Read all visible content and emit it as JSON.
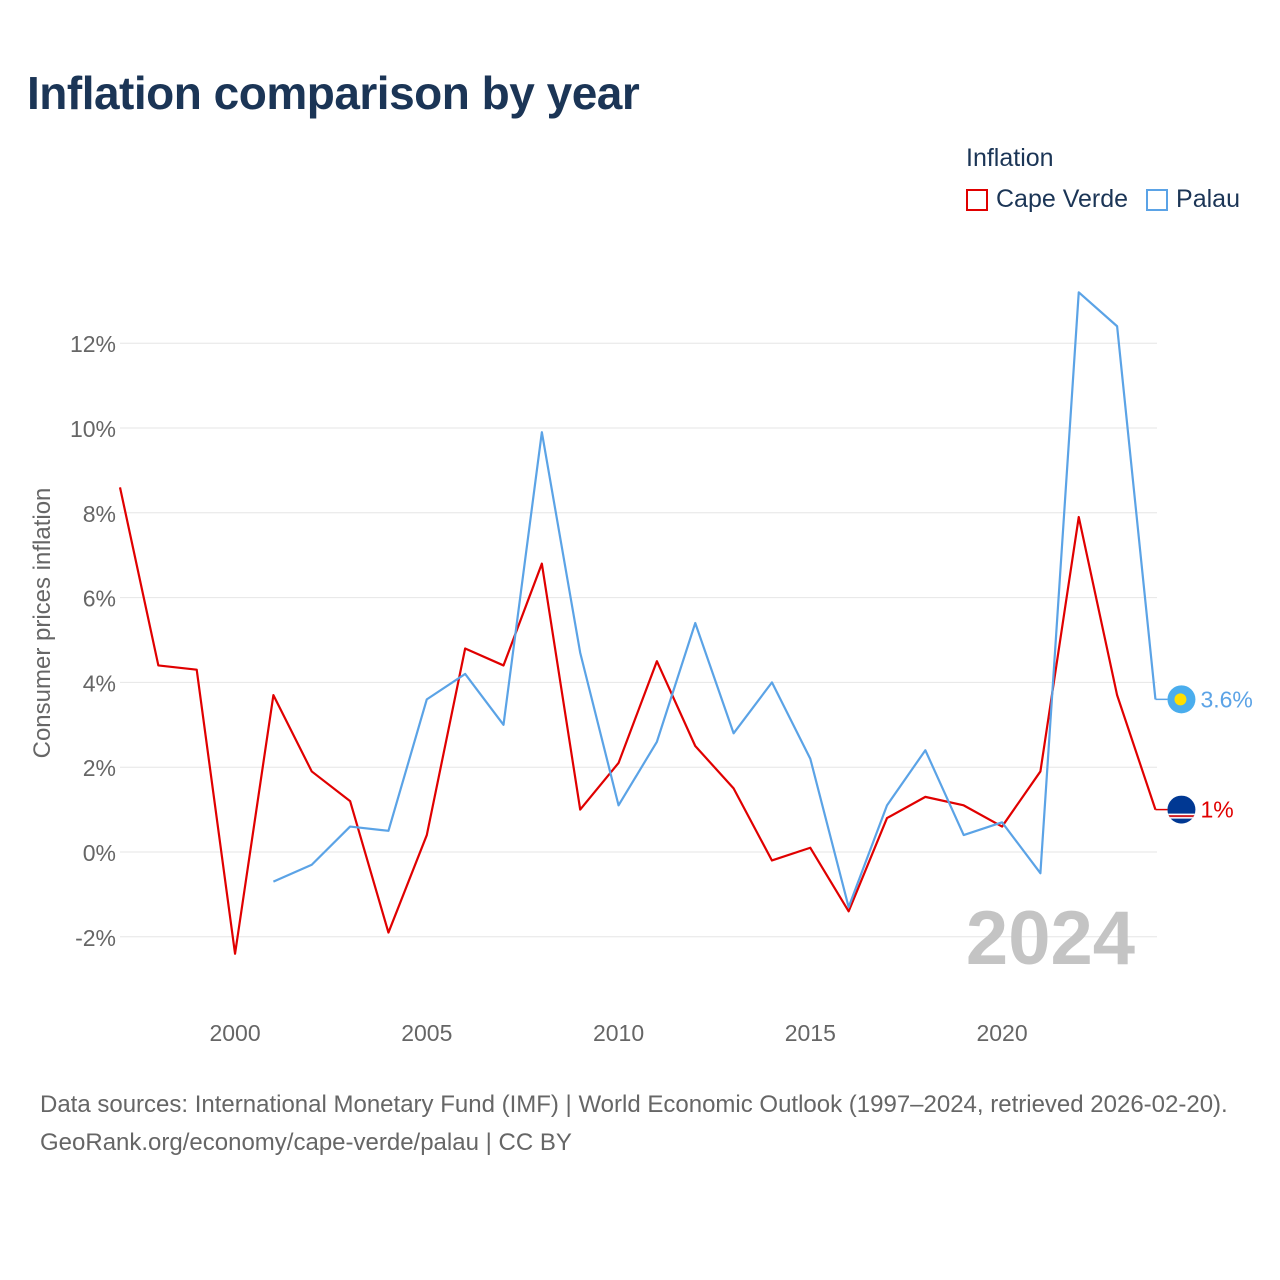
{
  "chart_data": {
    "type": "line",
    "title": "Inflation comparison by year",
    "legend_title": "Inflation",
    "legend_position": "top-right",
    "ylabel": "Consumer prices inflation",
    "xlabel": "",
    "xlim": [
      1997,
      2024
    ],
    "ylim": [
      -3,
      13
    ],
    "y_ticks": [
      -2,
      0,
      2,
      4,
      6,
      8,
      10,
      12
    ],
    "y_tick_labels": [
      "-2%",
      "0%",
      "2%",
      "4%",
      "6%",
      "8%",
      "10%",
      "12%"
    ],
    "x_ticks": [
      2000,
      2005,
      2010,
      2015,
      2020
    ],
    "x_tick_labels": [
      "2000",
      "2005",
      "2010",
      "2015",
      "2020"
    ],
    "grid": true,
    "year_watermark": "2024",
    "series": [
      {
        "name": "Cape Verde",
        "color": "#e00000",
        "end_label": "1%",
        "points": [
          [
            1997,
            8.6
          ],
          [
            1998,
            4.4
          ],
          [
            1999,
            4.3
          ],
          [
            2000,
            -2.4
          ],
          [
            2001,
            3.7
          ],
          [
            2002,
            1.9
          ],
          [
            2003,
            1.2
          ],
          [
            2004,
            -1.9
          ],
          [
            2005,
            0.4
          ],
          [
            2006,
            4.8
          ],
          [
            2007,
            4.4
          ],
          [
            2008,
            6.8
          ],
          [
            2009,
            1.0
          ],
          [
            2010,
            2.1
          ],
          [
            2011,
            4.5
          ],
          [
            2012,
            2.5
          ],
          [
            2013,
            1.5
          ],
          [
            2014,
            -0.2
          ],
          [
            2015,
            0.1
          ],
          [
            2016,
            -1.4
          ],
          [
            2017,
            0.8
          ],
          [
            2018,
            1.3
          ],
          [
            2019,
            1.1
          ],
          [
            2020,
            0.6
          ],
          [
            2021,
            1.9
          ],
          [
            2022,
            7.9
          ],
          [
            2023,
            3.7
          ],
          [
            2024,
            1.0
          ]
        ]
      },
      {
        "name": "Palau",
        "color": "#5ba3e6",
        "end_label": "3.6%",
        "points": [
          [
            2001,
            -0.7
          ],
          [
            2002,
            -0.3
          ],
          [
            2003,
            0.6
          ],
          [
            2004,
            0.5
          ],
          [
            2005,
            3.6
          ],
          [
            2006,
            4.2
          ],
          [
            2007,
            3.0
          ],
          [
            2008,
            9.9
          ],
          [
            2009,
            4.7
          ],
          [
            2010,
            1.1
          ],
          [
            2011,
            2.6
          ],
          [
            2012,
            5.4
          ],
          [
            2013,
            2.8
          ],
          [
            2014,
            4.0
          ],
          [
            2015,
            2.2
          ],
          [
            2016,
            -1.3
          ],
          [
            2017,
            1.1
          ],
          [
            2018,
            2.4
          ],
          [
            2019,
            0.4
          ],
          [
            2020,
            0.7
          ],
          [
            2021,
            -0.5
          ],
          [
            2022,
            13.2
          ],
          [
            2023,
            12.4
          ],
          [
            2024,
            3.6
          ]
        ]
      }
    ]
  },
  "footer": {
    "sources": "Data sources: International Monetary Fund (IMF) | World Economic Outlook (1997–2024, retrieved 2026-02-20).",
    "attribution": "GeoRank.org/economy/cape-verde/palau | CC BY"
  },
  "icons": [
    "cape-verde-flag-icon",
    "palau-flag-icon"
  ]
}
